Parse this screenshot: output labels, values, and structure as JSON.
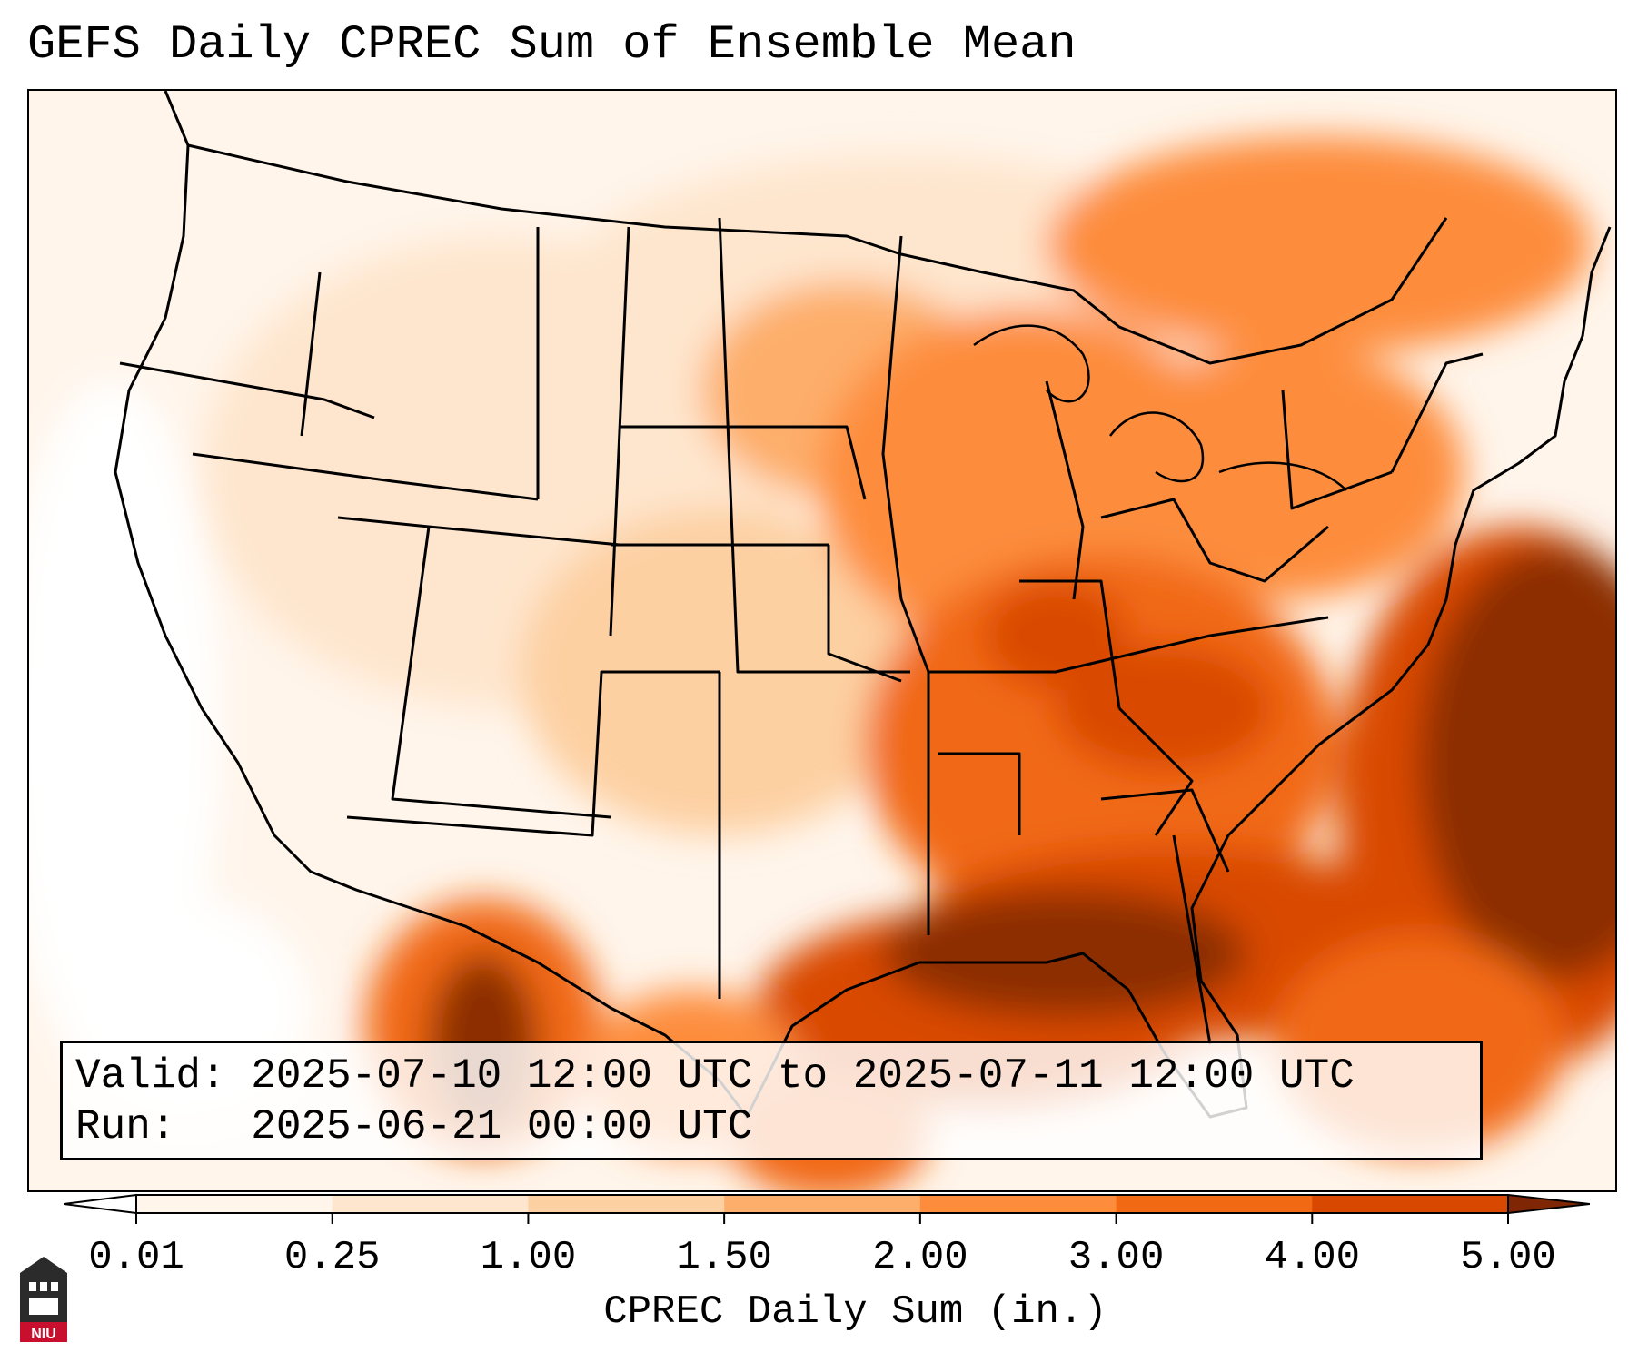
{
  "title": "GEFS Daily CPREC Sum of Ensemble Mean",
  "info": {
    "valid_line": "Valid: 2025-07-10 12:00 UTC to 2025-07-11 12:00 UTC",
    "run_line": "Run:   2025-06-21 00:00 UTC"
  },
  "colorbar": {
    "label": "CPREC Daily Sum (in.)",
    "ticks": [
      "0.01",
      "0.25",
      "1.00",
      "1.50",
      "2.00",
      "3.00",
      "4.00",
      "5.00"
    ],
    "colors": [
      "#fff5eb",
      "#fee6ce",
      "#fdd0a2",
      "#fdae6b",
      "#fd8d3c",
      "#f16913",
      "#d94801",
      "#8c2d04"
    ],
    "under_color": "#ffffff",
    "over_color": "#7f2704",
    "extend": "both"
  },
  "logo": {
    "text": "NIU",
    "icon": "niu-logo-icon",
    "colors": {
      "tower": "#2b2b2b",
      "band": "#c8102e"
    }
  }
}
